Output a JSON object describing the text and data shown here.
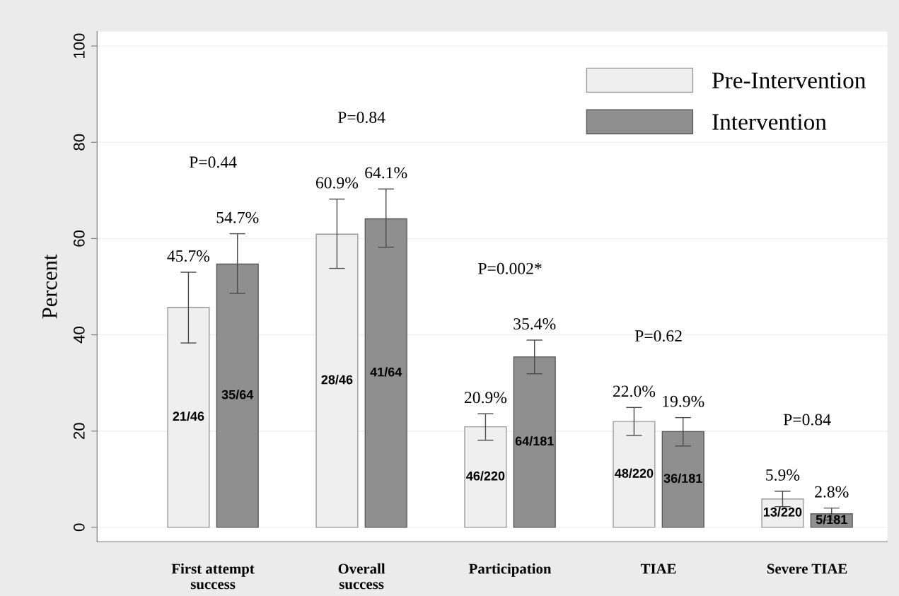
{
  "chart_data": {
    "type": "bar",
    "ylabel": "Percent",
    "categories": [
      "First attempt\nsuccess",
      "Overall\nsuccess",
      "Participation",
      "TIAE",
      "Severe TIAE"
    ],
    "series": [
      {
        "name": "Pre-Intervention",
        "color": "#efefef",
        "values": [
          45.7,
          60.9,
          20.9,
          22.0,
          5.9
        ],
        "errors": [
          [
            38.3,
            53.0
          ],
          [
            53.8,
            68.2
          ],
          [
            18.1,
            23.6
          ],
          [
            19.1,
            24.9
          ],
          [
            4.3,
            7.5
          ]
        ],
        "value_labels": [
          "45.7%",
          "60.9%",
          "20.9%",
          "22.0%",
          "5.9%"
        ]
      },
      {
        "name": "Intervention",
        "color": "#8f8f8f",
        "values": [
          54.7,
          64.1,
          35.4,
          19.9,
          2.8
        ],
        "errors": [
          [
            48.6,
            61.0
          ],
          [
            58.2,
            70.3
          ],
          [
            31.9,
            38.9
          ],
          [
            16.9,
            22.8
          ],
          [
            1.5,
            4.0
          ]
        ],
        "value_labels": [
          "54.7%",
          "64.1%",
          "35.4%",
          "19.9%",
          "2.8%"
        ]
      }
    ],
    "ylim": [
      -3,
      103
    ],
    "yticks": [
      0,
      20,
      40,
      60,
      80,
      100
    ],
    "grid": "y",
    "legend": "top right",
    "annotations": [
      "P=0.44",
      "P=0.84",
      "P=0.002*",
      "P=0.62",
      "P=0.84",
      "21/46",
      "35/64",
      "28/46",
      "41/64",
      "46/220",
      "64/181",
      "48/220",
      "36/181",
      "13/220",
      "5/181"
    ]
  }
}
